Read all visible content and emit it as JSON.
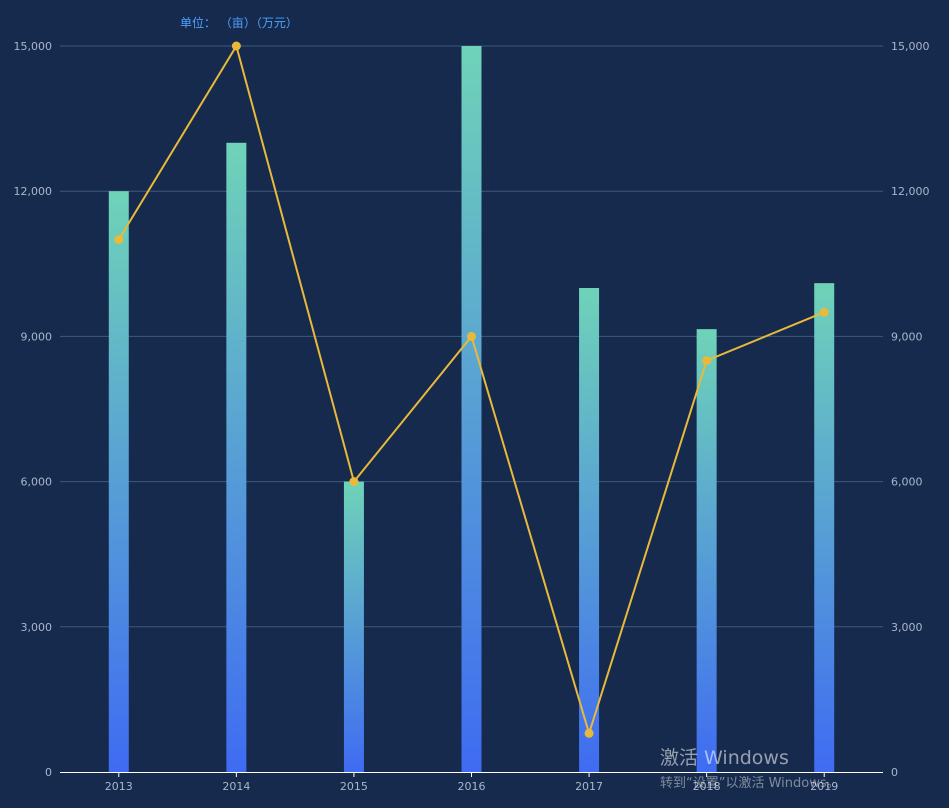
{
  "header": {
    "unit_label": "单位： （亩）（万元）"
  },
  "watermark": {
    "line1": "激活 Windows",
    "line2": "转到“设置”以激活 Windows。"
  },
  "colors": {
    "bar_top": "#6fd3b8",
    "bar_bottom": "#3f6bf2",
    "line": "#e8b93a",
    "grid": "#40587a",
    "axis": "#ffffff"
  },
  "chart_data": {
    "type": "bar",
    "categories": [
      "2013",
      "2014",
      "2015",
      "2016",
      "2017",
      "2018",
      "2019"
    ],
    "series": [
      {
        "type": "bar",
        "axis": "left",
        "values": [
          12000,
          13000,
          6000,
          15000,
          10000,
          9150,
          10100
        ]
      },
      {
        "type": "line",
        "axis": "right",
        "values": [
          11000,
          15000,
          6000,
          9000,
          800,
          8500,
          9500
        ]
      }
    ],
    "y_left": {
      "min": 0,
      "max": 15000,
      "ticks": [
        "0",
        "3,000",
        "6,000",
        "9,000",
        "12,000",
        "15,000"
      ]
    },
    "y_right": {
      "min": 0,
      "max": 15000,
      "ticks": [
        "0",
        "3,000",
        "6,000",
        "9,000",
        "12,000",
        "15,000"
      ]
    },
    "grid": true
  }
}
